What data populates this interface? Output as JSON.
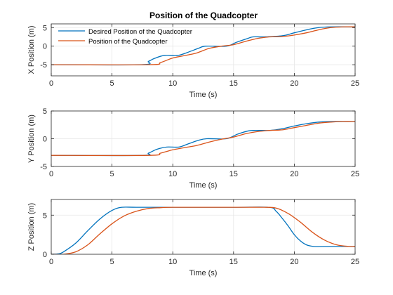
{
  "figure": {
    "title": "Position of the Quadcopter"
  },
  "colors": {
    "desired": "#0072BD",
    "actual": "#D95319",
    "grid": "#E6E6E6",
    "axis": "#262626"
  },
  "chart_data": [
    {
      "type": "line",
      "title": "Position of the Quadcopter",
      "xlabel": "Time (s)",
      "ylabel": "X Position (m)",
      "xlim": [
        0,
        25
      ],
      "ylim": [
        -8,
        6
      ],
      "xticks": [
        0,
        5,
        10,
        15,
        20,
        25
      ],
      "yticks": [
        -5,
        0,
        5
      ],
      "grid": true,
      "legend": {
        "placement": "top-left",
        "entries": [
          "Desired Position of the Quadcopter",
          "Position of the Quadcopter"
        ]
      },
      "series": [
        {
          "name": "Desired Position of the Quadcopter",
          "x": [
            0,
            7.4,
            8,
            8.5,
            9.3,
            10.4,
            11.2,
            12.1,
            12.7,
            14.4,
            15.2,
            16.1,
            16.6,
            17.5,
            19,
            20,
            21,
            22,
            23,
            25
          ],
          "y": [
            -5,
            -5,
            -4.1,
            -3.3,
            -2.5,
            -2.5,
            -1.7,
            -0.6,
            0,
            0,
            1,
            2,
            2.5,
            2.5,
            2.8,
            3.6,
            4.4,
            5,
            5.2,
            5.2
          ]
        },
        {
          "name": "Position of the Quadcopter",
          "x": [
            0,
            8,
            9,
            10,
            11.2,
            12,
            13,
            14,
            15,
            16,
            17,
            18,
            19,
            20,
            21,
            22,
            23,
            24,
            25
          ],
          "y": [
            -5,
            -5,
            -4.4,
            -3.2,
            -2.4,
            -1.8,
            -0.6,
            0,
            0.4,
            1.3,
            2.1,
            2.5,
            2.6,
            3.0,
            3.6,
            4.4,
            5,
            5.2,
            5.2
          ]
        }
      ]
    },
    {
      "type": "line",
      "xlabel": "Time (s)",
      "ylabel": "Y Position (m)",
      "xlim": [
        0,
        25
      ],
      "ylim": [
        -5,
        5
      ],
      "xticks": [
        0,
        5,
        10,
        15,
        20,
        25
      ],
      "yticks": [
        -5,
        0,
        5
      ],
      "grid": true,
      "series": [
        {
          "name": "Desired Position of the Quadcopter",
          "x": [
            0,
            7.4,
            8,
            8.7,
            9.5,
            10.5,
            11.3,
            12.1,
            12.8,
            14.4,
            15.3,
            16.2,
            16.8,
            18,
            19,
            20,
            21,
            22,
            23,
            25
          ],
          "y": [
            -3,
            -3,
            -2.6,
            -1.9,
            -1.5,
            -1.5,
            -0.9,
            -0.3,
            0,
            0,
            0.8,
            1.4,
            1.5,
            1.5,
            1.8,
            2.3,
            2.7,
            3,
            3.1,
            3.1
          ]
        },
        {
          "name": "Position of the Quadcopter",
          "x": [
            0,
            8,
            9,
            10,
            11,
            12,
            13,
            14,
            15,
            16,
            17,
            18,
            19,
            20,
            21,
            22,
            23,
            24,
            25
          ],
          "y": [
            -3,
            -3,
            -2.6,
            -2,
            -1.6,
            -1.2,
            -0.6,
            -0.1,
            0.3,
            0.9,
            1.3,
            1.5,
            1.6,
            2,
            2.4,
            2.8,
            3.0,
            3.1,
            3.1
          ]
        }
      ]
    },
    {
      "type": "line",
      "xlabel": "Time (s)",
      "ylabel": "Z Position (m)",
      "xlim": [
        0,
        25
      ],
      "ylim": [
        0,
        7
      ],
      "xticks": [
        0,
        5,
        10,
        15,
        20,
        25
      ],
      "yticks": [
        0,
        5
      ],
      "grid": true,
      "series": [
        {
          "name": "Desired Position of the Quadcopter",
          "x": [
            0,
            0.6,
            1,
            2,
            3,
            4,
            5,
            5.8,
            7,
            10,
            15,
            17.9,
            18.5,
            19,
            19.5,
            20,
            20.5,
            21,
            21.6,
            22.5,
            25
          ],
          "y": [
            0,
            0.05,
            0.3,
            1.4,
            3,
            4.5,
            5.6,
            6,
            6,
            6,
            6,
            6,
            5.5,
            4.6,
            3.6,
            2.5,
            1.7,
            1.2,
            1,
            1,
            1
          ]
        },
        {
          "name": "Position of the Quadcopter",
          "x": [
            0,
            1,
            2,
            3,
            4,
            5,
            6,
            7,
            8,
            9,
            10,
            15,
            17.5,
            18.5,
            19.5,
            20.5,
            21.5,
            22.5,
            23.5,
            24.5,
            25
          ],
          "y": [
            0,
            0,
            0.3,
            1.2,
            2.6,
            3.9,
            4.9,
            5.5,
            5.85,
            5.95,
            6,
            6,
            6,
            5.9,
            5.2,
            4.1,
            2.8,
            1.8,
            1.2,
            1,
            1
          ]
        }
      ]
    }
  ]
}
